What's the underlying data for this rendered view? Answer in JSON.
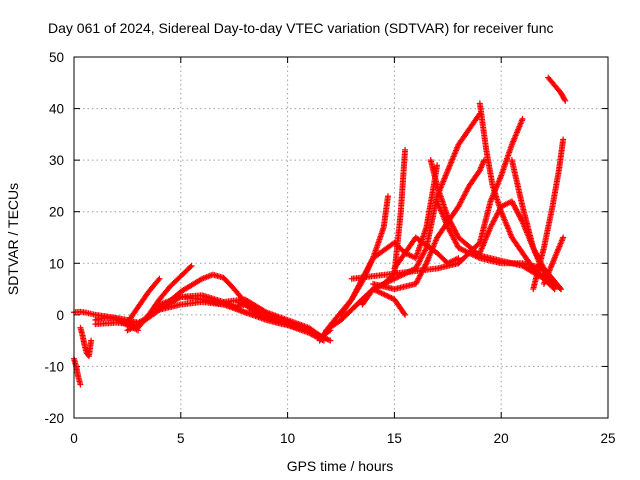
{
  "chart_data": {
    "type": "scatter",
    "title": "Day 061 of 2024, Sidereal Day-to-day VTEC variation (SDTVAR) for receiver func",
    "xlabel": "GPS time / hours",
    "ylabel": "SDTVAR / TECUs",
    "xlim": [
      0,
      25
    ],
    "ylim": [
      -20,
      50
    ],
    "xticks": [
      0,
      5,
      10,
      15,
      20,
      25
    ],
    "yticks": [
      -20,
      -10,
      0,
      10,
      20,
      30,
      40,
      50
    ],
    "grid": true,
    "marker": "+",
    "color": "#ff0000",
    "series": [
      {
        "name": "s1",
        "x": [
          0.0,
          0.3,
          0.6,
          1.0,
          1.5,
          2.0,
          2.5,
          3.0,
          3.5,
          4.0,
          5.0,
          6.0,
          7.0,
          8.0,
          9.0,
          10.0,
          11.0,
          11.5,
          12.0
        ],
        "y": [
          0.5,
          0.6,
          0.4,
          0.0,
          -0.3,
          -0.6,
          -1.0,
          -1.5,
          -0.5,
          1.0,
          3.5,
          3.0,
          2.0,
          0.5,
          -0.5,
          -1.5,
          -3.0,
          -4.5,
          -3.0
        ]
      },
      {
        "name": "s2",
        "x": [
          1.0,
          2.0,
          3.0,
          3.5,
          4.0,
          5.0,
          6.0,
          7.0,
          8.0,
          9.0,
          10.0,
          11.0,
          11.7
        ],
        "y": [
          -1.8,
          -1.5,
          -2.0,
          0.0,
          2.0,
          3.5,
          3.8,
          2.5,
          0.5,
          -1.0,
          -2.0,
          -3.5,
          -5.0
        ]
      },
      {
        "name": "s3",
        "x": [
          2.5,
          3.0,
          4.0,
          5.0,
          6.0,
          6.5,
          7.0,
          7.5,
          8.0,
          9.0,
          10.0,
          11.0,
          12.0
        ],
        "y": [
          -3.0,
          -2.0,
          1.0,
          4.5,
          7.0,
          7.8,
          7.2,
          5.0,
          2.5,
          -0.5,
          -1.5,
          -3.0,
          -5.0
        ]
      },
      {
        "name": "s4",
        "x": [
          2.5,
          3.0,
          3.5,
          4.0
        ],
        "y": [
          -1.5,
          1.5,
          4.5,
          7.0
        ]
      },
      {
        "name": "s5",
        "x": [
          3.0,
          3.5,
          4.0,
          4.5,
          5.0,
          5.5
        ],
        "y": [
          -2.5,
          0.0,
          3.0,
          5.5,
          7.5,
          9.5
        ]
      },
      {
        "name": "s6",
        "x": [
          4.0,
          5.0,
          6.0,
          7.0,
          7.5,
          8.0,
          8.5,
          9.0,
          9.5,
          10.0,
          11.0
        ],
        "y": [
          1.0,
          2.0,
          2.5,
          2.0,
          1.5,
          2.0,
          0.5,
          -0.5,
          -1.5,
          -2.0,
          -3.0
        ]
      },
      {
        "name": "s7",
        "x": [
          7.0,
          8.0,
          9.0,
          10.0,
          11.0,
          11.5
        ],
        "y": [
          2.5,
          3.0,
          0.5,
          -1.0,
          -2.5,
          -4.0
        ]
      },
      {
        "name": "s8",
        "x": [
          0.0,
          0.1,
          0.2,
          0.3
        ],
        "y": [
          -8.5,
          -10.0,
          -12.0,
          -13.5
        ]
      },
      {
        "name": "s9",
        "x": [
          0.3,
          0.4,
          0.5,
          0.6,
          0.7,
          0.8
        ],
        "y": [
          -2.5,
          -4.0,
          -6.0,
          -7.5,
          -8.0,
          -5.0
        ]
      },
      {
        "name": "s10",
        "x": [
          11.5,
          12.0,
          12.5,
          13.0,
          13.5,
          14.0,
          14.5,
          14.7
        ],
        "y": [
          -5.0,
          -2.0,
          0.5,
          3.0,
          6.5,
          11.0,
          17.0,
          23.0
        ]
      },
      {
        "name": "s11",
        "x": [
          11.8,
          12.5,
          13.0,
          13.5,
          14.0,
          14.5,
          15.0,
          15.3,
          15.5
        ],
        "y": [
          -3.0,
          -1.0,
          1.0,
          3.0,
          5.0,
          6.0,
          8.0,
          20.0,
          32.0
        ]
      },
      {
        "name": "s12",
        "x": [
          12.5,
          13.0,
          14.0,
          15.0,
          15.5
        ],
        "y": [
          -1.0,
          1.0,
          5.0,
          3.0,
          0.0
        ]
      },
      {
        "name": "s13",
        "x": [
          12.5,
          13.0,
          13.5,
          14.0,
          15.0,
          15.5,
          16.0,
          16.5,
          16.8,
          17.0
        ],
        "y": [
          0.0,
          3.0,
          7.0,
          11.0,
          14.0,
          12.0,
          11.0,
          17.0,
          24.0,
          29.0
        ]
      },
      {
        "name": "s14",
        "x": [
          13.5,
          14.0,
          15.0,
          16.0,
          16.5,
          17.0,
          18.0,
          19.0
        ],
        "y": [
          2.0,
          5.0,
          7.0,
          9.0,
          13.0,
          23.0,
          33.0,
          39.0
        ]
      },
      {
        "name": "s15",
        "x": [
          14.0,
          15.0,
          16.0,
          16.5,
          17.0,
          17.5,
          18.0,
          18.5,
          19.0,
          19.2
        ],
        "y": [
          6.0,
          5.0,
          6.0,
          10.0,
          15.0,
          18.0,
          21.0,
          25.0,
          28.0,
          30.0
        ]
      },
      {
        "name": "s16",
        "x": [
          15.0,
          16.0,
          17.0,
          17.5,
          18.0
        ],
        "y": [
          9.0,
          15.0,
          12.0,
          10.0,
          11.0
        ]
      },
      {
        "name": "s17",
        "x": [
          16.7,
          17.0,
          17.5,
          18.0,
          19.0,
          20.0,
          21.0,
          22.0,
          22.5
        ],
        "y": [
          30.0,
          25.0,
          19.0,
          15.0,
          11.5,
          10.5,
          9.5,
          7.0,
          5.0
        ]
      },
      {
        "name": "s18",
        "x": [
          17.0,
          17.5,
          18.0,
          19.0,
          20.0,
          21.0,
          22.0,
          22.8
        ],
        "y": [
          22.0,
          17.0,
          13.0,
          11.0,
          10.0,
          10.0,
          9.0,
          5.0
        ]
      },
      {
        "name": "s19",
        "x": [
          7.7,
          8.3,
          8.8,
          9.3,
          9.8
        ],
        "y": [
          2.5,
          1.5,
          0.5,
          -0.5,
          -1.5
        ]
      },
      {
        "name": "s20",
        "x": [
          19.0,
          19.3,
          19.6,
          20.0,
          20.5,
          21.0,
          21.5,
          22.0,
          22.5
        ],
        "y": [
          41.0,
          32.0,
          25.0,
          20.0,
          15.0,
          12.0,
          9.0,
          7.0,
          5.0
        ]
      },
      {
        "name": "s21",
        "x": [
          18.0,
          19.0,
          19.5,
          20.0,
          20.5,
          21.0
        ],
        "y": [
          10.0,
          14.0,
          22.0,
          27.0,
          33.0,
          38.0
        ]
      },
      {
        "name": "s22",
        "x": [
          19.0,
          19.5,
          20.0,
          20.5,
          21.0,
          21.5,
          22.0,
          22.5,
          22.8
        ],
        "y": [
          12.0,
          17.0,
          21.0,
          22.0,
          18.0,
          13.0,
          9.0,
          6.0,
          5.0
        ]
      },
      {
        "name": "s23",
        "x": [
          20.5,
          21.0,
          21.5,
          22.0,
          22.5,
          22.8
        ],
        "y": [
          30.0,
          21.0,
          13.0,
          8.0,
          6.0,
          5.0
        ]
      },
      {
        "name": "s24",
        "x": [
          21.5,
          22.0,
          22.4,
          22.7,
          22.9
        ],
        "y": [
          5.0,
          13.0,
          21.0,
          28.0,
          34.0
        ]
      },
      {
        "name": "s25",
        "x": [
          22.0,
          22.4,
          22.9
        ],
        "y": [
          6.0,
          10.0,
          15.0
        ]
      },
      {
        "name": "s26",
        "x": [
          22.2,
          22.5,
          22.8,
          23.0
        ],
        "y": [
          46.0,
          44.5,
          43.0,
          41.5
        ]
      },
      {
        "name": "s27",
        "x": [
          13.0,
          14.0,
          15.0,
          16.0,
          17.0,
          18.0
        ],
        "y": [
          7.0,
          7.5,
          8.0,
          8.5,
          9.0,
          10.0
        ]
      },
      {
        "name": "s28",
        "x": [
          1.0,
          1.5,
          2.0,
          2.5,
          3.0
        ],
        "y": [
          -1.0,
          -0.5,
          -0.8,
          -2.0,
          -3.0
        ]
      }
    ]
  }
}
